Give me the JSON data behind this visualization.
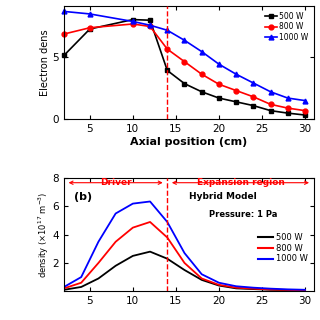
{
  "top_panel": {
    "xlabel": "Axial position (cm)",
    "ylabel": "Electron dens",
    "ylim": [
      0,
      9
    ],
    "xlim": [
      2,
      31
    ],
    "yticks": [
      0,
      5
    ],
    "xticks": [
      5,
      10,
      15,
      20,
      25,
      30
    ],
    "dashed_x": 14,
    "series": [
      {
        "label": "500 W",
        "color": "black",
        "marker": "s",
        "x": [
          2,
          5,
          10,
          12,
          14,
          16,
          18,
          20,
          22,
          24,
          26,
          28,
          30
        ],
        "y": [
          5.1,
          7.2,
          7.95,
          7.9,
          3.9,
          2.85,
          2.2,
          1.7,
          1.4,
          1.1,
          0.7,
          0.5,
          0.35
        ]
      },
      {
        "label": "800 W",
        "color": "red",
        "marker": "o",
        "x": [
          2,
          5,
          10,
          12,
          14,
          16,
          18,
          20,
          22,
          24,
          26,
          28,
          30
        ],
        "y": [
          6.8,
          7.3,
          7.6,
          7.4,
          5.6,
          4.6,
          3.6,
          2.8,
          2.3,
          1.8,
          1.2,
          0.9,
          0.7
        ]
      },
      {
        "label": "1000 W",
        "color": "blue",
        "marker": "^",
        "x": [
          2,
          5,
          10,
          12,
          14,
          16,
          18,
          20,
          22,
          24,
          26,
          28,
          30
        ],
        "y": [
          8.6,
          8.4,
          7.8,
          7.5,
          7.1,
          6.3,
          5.4,
          4.4,
          3.6,
          2.9,
          2.2,
          1.7,
          1.5
        ]
      }
    ]
  },
  "bottom_panel": {
    "ylim": [
      0,
      8
    ],
    "xlim": [
      2,
      31
    ],
    "yticks": [
      2,
      4,
      6,
      8
    ],
    "xticks": [
      5,
      10,
      15,
      20,
      25,
      30
    ],
    "dashed_x": 14,
    "driver_label": "Driver",
    "expansion_label": "Expansion region",
    "model_label": "Hybrid Model",
    "pressure_label": "Pressure: 1 Pa",
    "label_b": "(b)",
    "series": [
      {
        "label": "500 W",
        "color": "black",
        "x": [
          2,
          4,
          6,
          8,
          10,
          12,
          14,
          16,
          18,
          20,
          22,
          24,
          26,
          28,
          30
        ],
        "y": [
          0.1,
          0.3,
          0.9,
          1.8,
          2.5,
          2.8,
          2.3,
          1.5,
          0.8,
          0.4,
          0.2,
          0.15,
          0.1,
          0.08,
          0.05
        ]
      },
      {
        "label": "800 W",
        "color": "red",
        "x": [
          2,
          4,
          6,
          8,
          10,
          12,
          14,
          16,
          18,
          20,
          22,
          24,
          26,
          28,
          30
        ],
        "y": [
          0.2,
          0.6,
          2.0,
          3.5,
          4.5,
          4.9,
          3.8,
          2.0,
          0.9,
          0.45,
          0.25,
          0.18,
          0.12,
          0.09,
          0.06
        ]
      },
      {
        "label": "1000 W",
        "color": "blue",
        "x": [
          2,
          4,
          6,
          8,
          10,
          12,
          14,
          16,
          18,
          20,
          22,
          24,
          26,
          28,
          30
        ],
        "y": [
          0.3,
          1.0,
          3.5,
          5.5,
          6.2,
          6.35,
          4.9,
          2.7,
          1.2,
          0.6,
          0.35,
          0.25,
          0.18,
          0.13,
          0.1
        ]
      }
    ]
  }
}
